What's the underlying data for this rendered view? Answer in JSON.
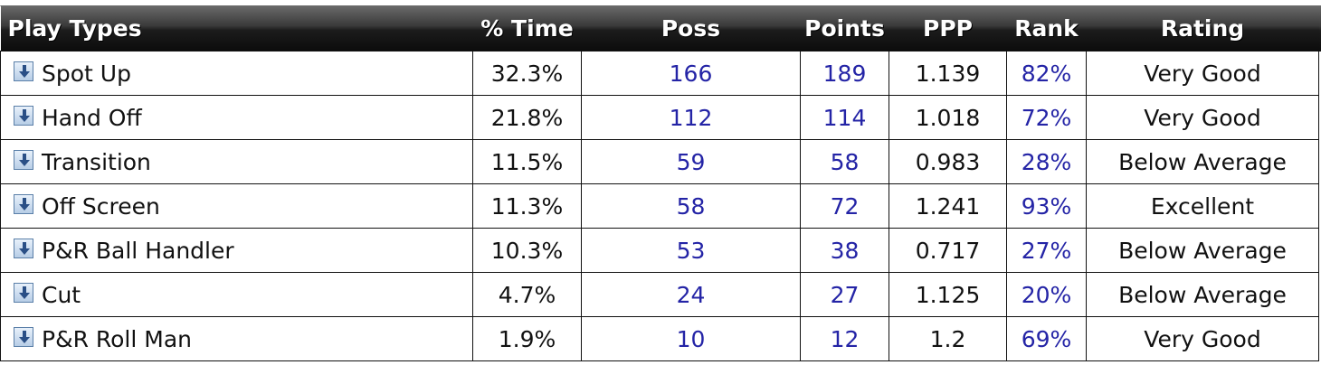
{
  "table": {
    "headers": {
      "play_types": "Play Types",
      "pct_time": "% Time",
      "poss": "Poss",
      "points": "Points",
      "ppp": "PPP",
      "rank": "Rank",
      "rating": "Rating"
    },
    "expand_icon": "expand-down-arrow-icon",
    "link_color": "#2424a6",
    "rows": [
      {
        "play_type": "Spot Up",
        "pct_time": "32.3%",
        "poss": "166",
        "points": "189",
        "ppp": "1.139",
        "rank": "82%",
        "rating": "Very Good"
      },
      {
        "play_type": "Hand Off",
        "pct_time": "21.8%",
        "poss": "112",
        "points": "114",
        "ppp": "1.018",
        "rank": "72%",
        "rating": "Very Good"
      },
      {
        "play_type": "Transition",
        "pct_time": "11.5%",
        "poss": "59",
        "points": "58",
        "ppp": "0.983",
        "rank": "28%",
        "rating": "Below Average"
      },
      {
        "play_type": "Off Screen",
        "pct_time": "11.3%",
        "poss": "58",
        "points": "72",
        "ppp": "1.241",
        "rank": "93%",
        "rating": "Excellent"
      },
      {
        "play_type": "P&R Ball Handler",
        "pct_time": "10.3%",
        "poss": "53",
        "points": "38",
        "ppp": "0.717",
        "rank": "27%",
        "rating": "Below Average"
      },
      {
        "play_type": "Cut",
        "pct_time": "4.7%",
        "poss": "24",
        "points": "27",
        "ppp": "1.125",
        "rank": "20%",
        "rating": "Below Average"
      },
      {
        "play_type": "P&R Roll Man",
        "pct_time": "1.9%",
        "poss": "10",
        "points": "12",
        "ppp": "1.2",
        "rank": "69%",
        "rating": "Very Good"
      }
    ]
  }
}
